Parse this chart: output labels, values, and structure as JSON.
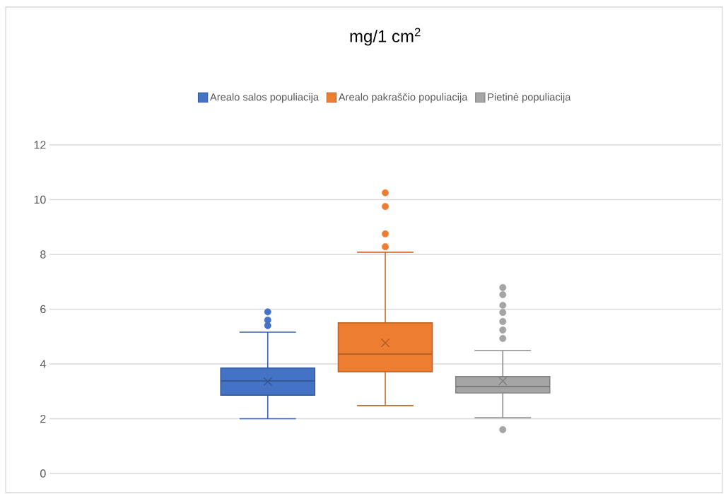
{
  "chart_data": {
    "type": "box",
    "title": "mg/1 cm$^{2}$",
    "categories": [
      null
    ],
    "ylim": [
      0,
      12
    ],
    "yticks": [
      0,
      2,
      4,
      6,
      8,
      10,
      12
    ],
    "grid": "y",
    "legend": "top",
    "series": [
      {
        "name": "Arealo salos populiacija",
        "color": "#4472c4",
        "boxes": [
          {
            "low": 2.0,
            "q1": 2.86,
            "median": 3.38,
            "q3": 3.85,
            "high": 5.16,
            "mean": 3.36,
            "outliers": [
              5.4,
              5.6,
              5.9
            ]
          }
        ]
      },
      {
        "name": "Arealo pakraščio populiacija",
        "color": "#ed7d31",
        "boxes": [
          {
            "low": 2.48,
            "q1": 3.72,
            "median": 4.36,
            "q3": 5.5,
            "high": 8.08,
            "mean": 4.77,
            "outliers": [
              8.28,
              8.75,
              9.75,
              10.25
            ]
          }
        ]
      },
      {
        "name": "Pietinė populiacija",
        "color": "#a5a5a5",
        "boxes": [
          {
            "low": 2.04,
            "q1": 2.94,
            "median": 3.17,
            "q3": 3.54,
            "high": 4.49,
            "mean": 3.38,
            "outliers": [
              1.6,
              4.93,
              5.24,
              5.55,
              5.88,
              6.14,
              6.53,
              6.79
            ]
          }
        ]
      }
    ]
  }
}
